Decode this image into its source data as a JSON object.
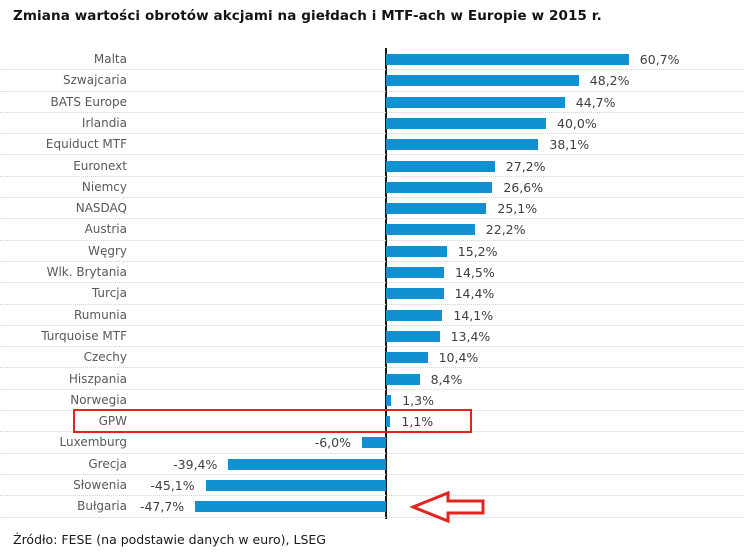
{
  "title": "Zmiana wartości obrotów akcjami na giełdach i MTF-ach w Europie w 2015 r.",
  "source": "Źródło: FESE (na podstawie danych w euro), LSEG",
  "colors": {
    "bar": "#1191d2",
    "annotation_red": "#e2241f",
    "axis": "#1a1a1a",
    "category_label": "#595959",
    "value_label": "#3f3f3f",
    "gridline": "#d4d4d4"
  },
  "chart_data": {
    "type": "bar",
    "orientation": "horizontal",
    "title": "Zmiana wartości obrotów akcjami na giełdach i MTF-ach w Europie w 2015 r.",
    "unit": "%",
    "categories": [
      "Malta",
      "Szwajcaria",
      "BATS Europe",
      "Irlandia",
      "Equiduct MTF",
      "Euronext",
      "Niemcy",
      "NASDAQ",
      "Austria",
      "Węgry",
      "Wlk. Brytania",
      "Turcja",
      "Rumunia",
      "Turquoise MTF",
      "Czechy",
      "Hiszpania",
      "Norwegia",
      "GPW",
      "Luxemburg",
      "Grecja",
      "Słowenia",
      "Bułgaria"
    ],
    "values": [
      60.7,
      48.2,
      44.7,
      40.0,
      38.1,
      27.2,
      26.6,
      25.1,
      22.2,
      15.2,
      14.5,
      14.4,
      14.1,
      13.4,
      10.4,
      8.4,
      1.3,
      1.1,
      -6.0,
      -39.4,
      -45.1,
      -47.7
    ],
    "value_labels": [
      "60,7%",
      "48,2%",
      "44,7%",
      "40,0%",
      "38,1%",
      "27,2%",
      "26,6%",
      "25,1%",
      "22,2%",
      "15,2%",
      "14,5%",
      "14,4%",
      "14,1%",
      "13,4%",
      "10,4%",
      "8,4%",
      "1,3%",
      "1,1%",
      "-6,0%",
      "-39,4%",
      "-45,1%",
      "-47,7%"
    ],
    "xlim": [
      -60,
      90
    ],
    "grid": "dotted-row-separators",
    "legend": "none",
    "annotations": {
      "highlight_box_category": "GPW",
      "arrow_category": "Bułgaria"
    }
  }
}
